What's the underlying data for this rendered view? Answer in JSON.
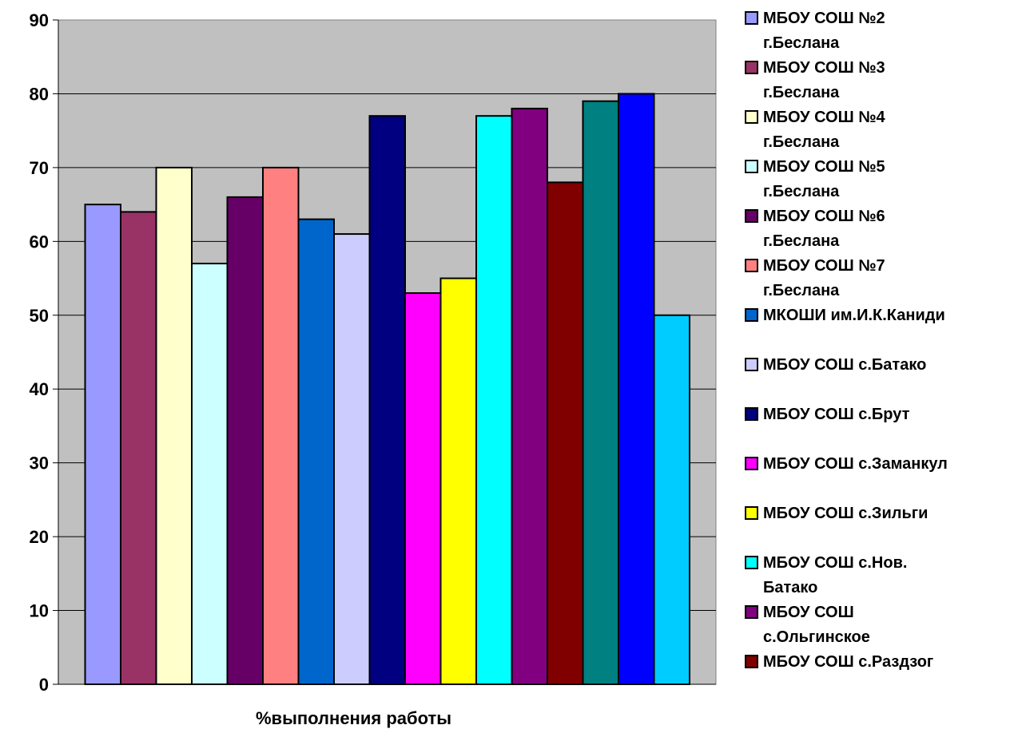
{
  "chart_data": {
    "type": "bar",
    "title": "",
    "xlabel": "%выполнения работы",
    "ylabel": "",
    "ylim": [
      0,
      90
    ],
    "y_ticks": [
      "0",
      "10",
      "20",
      "30",
      "40",
      "50",
      "60",
      "70",
      "80",
      "90"
    ],
    "grid": true,
    "legend_position": "right",
    "plot_background": "#c0c0c0",
    "series": [
      {
        "name": "МБОУ СОШ №2 г.Беслана",
        "value": 65,
        "color": "#9999ff"
      },
      {
        "name": "МБОУ СОШ №3 г.Беслана",
        "value": 64,
        "color": "#993366"
      },
      {
        "name": "МБОУ СОШ №4 г.Беслана",
        "value": 70,
        "color": "#ffffcc"
      },
      {
        "name": "МБОУ СОШ №5 г.Беслана",
        "value": 57,
        "color": "#ccffff"
      },
      {
        "name": "МБОУ СОШ №6 г.Беслана",
        "value": 66,
        "color": "#660066"
      },
      {
        "name": "МБОУ СОШ №7 г.Беслана",
        "value": 70,
        "color": "#ff8080"
      },
      {
        "name": "МКОШИ им.И.К.Каниди",
        "value": 63,
        "color": "#0066cc"
      },
      {
        "name": "МБОУ СОШ с.Батако",
        "value": 61,
        "color": "#ccccff"
      },
      {
        "name": "МБОУ СОШ с.Брут",
        "value": 77,
        "color": "#000080"
      },
      {
        "name": "МБОУ СОШ с.Заманкул",
        "value": 53,
        "color": "#ff00ff"
      },
      {
        "name": "МБОУ СОШ с.Зильги",
        "value": 55,
        "color": "#ffff00"
      },
      {
        "name": "МБОУ СОШ с.Нов. Батако",
        "value": 77,
        "color": "#00ffff"
      },
      {
        "name": "МБОУ СОШ с.Ольгинское",
        "value": 78,
        "color": "#800080"
      },
      {
        "name": "МБОУ СОШ с.Раздзог",
        "value": 68,
        "color": "#800000"
      },
      {
        "name": "",
        "value": 79,
        "color": "#008080"
      },
      {
        "name": "",
        "value": 80,
        "color": "#0000ff"
      },
      {
        "name": "",
        "value": 50,
        "color": "#00ccff"
      }
    ]
  },
  "legend_entries": [
    {
      "line1": "МБОУ СОШ №2",
      "line2": "г.Беслана",
      "color": "#9999ff"
    },
    {
      "line1": "МБОУ СОШ №3",
      "line2": "г.Беслана",
      "color": "#993366"
    },
    {
      "line1": "МБОУ СОШ №4",
      "line2": "г.Беслана",
      "color": "#ffffcc"
    },
    {
      "line1": "МБОУ СОШ №5",
      "line2": "г.Беслана",
      "color": "#ccffff"
    },
    {
      "line1": "МБОУ СОШ №6",
      "line2": "г.Беслана",
      "color": "#660066"
    },
    {
      "line1": "МБОУ СОШ №7",
      "line2": "г.Беслана",
      "color": "#ff8080"
    },
    {
      "line1": "МКОШИ им.И.К.Каниди",
      "line2": "",
      "color": "#0066cc"
    },
    {
      "line1": "МБОУ СОШ с.Батако",
      "line2": "",
      "color": "#ccccff"
    },
    {
      "line1": "МБОУ СОШ с.Брут",
      "line2": "",
      "color": "#000080"
    },
    {
      "line1": "МБОУ СОШ с.Заманкул",
      "line2": "",
      "color": "#ff00ff"
    },
    {
      "line1": "МБОУ СОШ с.Зильги",
      "line2": "",
      "color": "#ffff00"
    },
    {
      "line1": "МБОУ СОШ с.Нов.",
      "line2": "Батако",
      "color": "#00ffff"
    },
    {
      "line1": "МБОУ СОШ",
      "line2": "с.Ольгинское",
      "color": "#800080"
    },
    {
      "line1": "МБОУ СОШ с.Раздзог",
      "line2": "",
      "color": "#800000"
    }
  ]
}
